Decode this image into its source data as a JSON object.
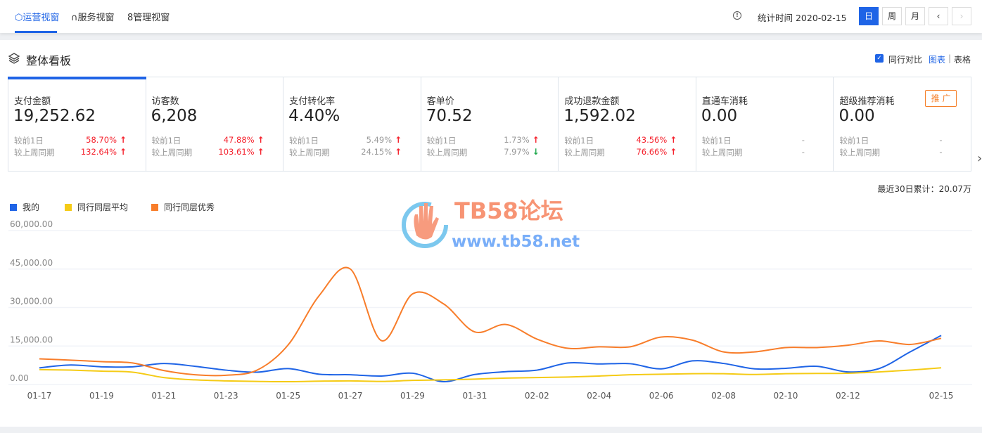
{
  "header": {
    "tabs": [
      {
        "label": "运营视窗",
        "icon": "shield-icon",
        "active": true
      },
      {
        "label": "服务视窗",
        "icon": "headset-icon"
      },
      {
        "label": "管理视窗",
        "icon": "person-icon"
      }
    ],
    "stat_time": "统计时间 2020-02-15",
    "period_buttons": [
      "日",
      "周",
      "月"
    ],
    "active_period": "日"
  },
  "panel": {
    "title": "整体看板",
    "compare_label": "同行对比",
    "compare_checked": true,
    "view_chart": "图表",
    "view_table": "表格",
    "separator": "|"
  },
  "metrics": [
    {
      "label": "支付金额",
      "value": "19,252.62",
      "d1_label": "较前1日",
      "d1": "58.70%",
      "d1_dir": "up",
      "w_label": "较上周同期",
      "w": "132.64%",
      "w_dir": "up"
    },
    {
      "label": "访客数",
      "value": "6,208",
      "d1_label": "较前1日",
      "d1": "47.88%",
      "d1_dir": "up",
      "w_label": "较上周同期",
      "w": "103.61%",
      "w_dir": "up"
    },
    {
      "label": "支付转化率",
      "value": "4.40%",
      "d1_label": "较前1日",
      "d1": "5.49%",
      "d1_dir": "up",
      "w_label": "较上周同期",
      "w": "24.15%",
      "w_dir": "up"
    },
    {
      "label": "客单价",
      "value": "70.52",
      "d1_label": "较前1日",
      "d1": "1.73%",
      "d1_dir": "up",
      "w_label": "较上周同期",
      "w": "7.97%",
      "w_dir": "down"
    },
    {
      "label": "成功退款金额",
      "value": "1,592.02",
      "d1_label": "较前1日",
      "d1": "43.56%",
      "d1_dir": "up",
      "w_label": "较上周同期",
      "w": "76.66%",
      "w_dir": "up"
    },
    {
      "label": "直通车消耗",
      "value": "0.00",
      "d1_label": "较前1日",
      "d1": "-",
      "w_label": "较上周同期",
      "w": "-"
    },
    {
      "label": "超级推荐消耗",
      "value": "0.00",
      "d1_label": "较前1日",
      "d1": "-",
      "w_label": "较上周同期",
      "w": "-",
      "badge": "推 广"
    }
  ],
  "total": "最近30日累计：20.07万",
  "watermark": {
    "title": "TB58论坛",
    "url": "www.tb58.net"
  },
  "colors": {
    "accent": "#1f64e6",
    "up": "#f5222d",
    "down": "#1ea84c"
  },
  "chart_data": {
    "type": "line",
    "x": [
      "01-17",
      "01-18",
      "01-19",
      "01-20",
      "01-21",
      "01-22",
      "01-23",
      "01-24",
      "01-25",
      "01-26",
      "01-27",
      "01-28",
      "01-29",
      "01-30",
      "01-31",
      "02-01",
      "02-02",
      "02-03",
      "02-04",
      "02-05",
      "02-06",
      "02-07",
      "02-08",
      "02-09",
      "02-10",
      "02-11",
      "02-12",
      "02-13",
      "02-14",
      "02-15"
    ],
    "xticks": [
      "01-17",
      "01-19",
      "01-21",
      "01-23",
      "01-25",
      "01-27",
      "01-29",
      "01-31",
      "02-02",
      "02-04",
      "02-06",
      "02-08",
      "02-10",
      "02-12",
      "02-15"
    ],
    "yticks": [
      "0.00",
      "15,000.00",
      "30,000.00",
      "45,000.00",
      "60,000.00"
    ],
    "ylim": [
      0,
      60000
    ],
    "grid": true,
    "legend_position": "top-left",
    "series": [
      {
        "name": "我的",
        "color": "#1f64e6",
        "values": [
          6500,
          7600,
          6900,
          6900,
          8200,
          7100,
          5600,
          4800,
          6200,
          4000,
          3800,
          3300,
          4400,
          1100,
          3900,
          5000,
          5600,
          8400,
          8000,
          8100,
          6100,
          9200,
          8200,
          6100,
          6300,
          7100,
          4900,
          6200,
          12700,
          19100
        ]
      },
      {
        "name": "同行同层平均",
        "color": "#f5cb16",
        "values": [
          5800,
          5600,
          5200,
          4800,
          2700,
          1800,
          1400,
          1200,
          1100,
          1300,
          1400,
          1200,
          1600,
          1800,
          2100,
          2500,
          2700,
          2900,
          3300,
          3800,
          4000,
          4200,
          4200,
          3900,
          4200,
          4300,
          4400,
          4900,
          5600,
          6500
        ]
      },
      {
        "name": "同行同层优秀",
        "color": "#f87d2a",
        "values": [
          10000,
          9500,
          8900,
          8400,
          5450,
          3800,
          3600,
          5600,
          15450,
          34700,
          45000,
          17100,
          35300,
          31400,
          20500,
          23400,
          17700,
          14100,
          14700,
          14700,
          18500,
          17300,
          12700,
          12700,
          14400,
          14400,
          15300,
          17000,
          15600,
          18000
        ]
      }
    ]
  }
}
